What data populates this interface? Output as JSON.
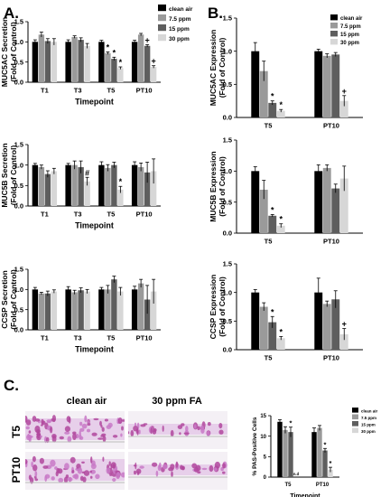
{
  "panels": {
    "A": "A.",
    "B": "B.",
    "C": "C."
  },
  "legend_labels": [
    "clean air",
    "7.5 ppm",
    "15 ppm",
    "30 ppm"
  ],
  "colors": [
    "#000000",
    "#9a9a9a",
    "#5e5e5e",
    "#d7d7d7"
  ],
  "histology": {
    "col1": "clean air",
    "col2": "30 ppm FA",
    "row1": "T5",
    "row2": "PT10",
    "stain_colors": [
      "#b0489d",
      "#e7cfea",
      "#c879c7"
    ]
  },
  "chart_data": [
    {
      "id": "A1",
      "type": "bar",
      "categories": [
        "T1",
        "T3",
        "T5",
        "PT10"
      ],
      "xlabel": "Timepoint",
      "ylabel": [
        "MUC5AC Secretion",
        "(Fold of Control)"
      ],
      "ylim": [
        0,
        1.5
      ],
      "yticks": [
        "0.0",
        "0.5",
        "1.0",
        "1.5"
      ],
      "legend": "right",
      "series": [
        {
          "name": "clean air",
          "values": [
            1.0,
            1.0,
            1.0,
            1.0
          ],
          "err": [
            0.05,
            0.05,
            0.04,
            0.04
          ]
        },
        {
          "name": "7.5 ppm",
          "values": [
            1.18,
            1.12,
            0.72,
            1.18
          ],
          "err": [
            0.06,
            0.03,
            0.03,
            0.03
          ]
        },
        {
          "name": "15 ppm",
          "values": [
            1.02,
            1.05,
            0.58,
            0.9
          ],
          "err": [
            0.06,
            0.05,
            0.04,
            0.03
          ]
        },
        {
          "name": "30 ppm",
          "values": [
            1.0,
            0.9,
            0.35,
            0.38
          ],
          "err": [
            0.08,
            0.06,
            0.03,
            0.03
          ]
        }
      ],
      "annotations": [
        {
          "category": 2,
          "series": 1,
          "text": "*"
        },
        {
          "category": 2,
          "series": 2,
          "text": "*"
        },
        {
          "category": 2,
          "series": 3,
          "text": "*"
        },
        {
          "category": 3,
          "series": 2,
          "text": "+"
        },
        {
          "category": 3,
          "series": 3,
          "text": "+"
        }
      ]
    },
    {
      "id": "A2",
      "type": "bar",
      "categories": [
        "T1",
        "T3",
        "T5",
        "PT10"
      ],
      "xlabel": "Timepoint",
      "ylabel": [
        "MUC5B Secretion",
        "(Fold of Control)"
      ],
      "ylim": [
        0,
        1.5
      ],
      "yticks": [
        "0.0",
        "0.5",
        "1.0",
        "1.5"
      ],
      "series": [
        {
          "name": "clean air",
          "values": [
            1.0,
            1.0,
            1.0,
            1.0
          ],
          "err": [
            0.04,
            0.04,
            0.08,
            0.08
          ]
        },
        {
          "name": "7.5 ppm",
          "values": [
            0.95,
            1.0,
            0.93,
            0.95
          ],
          "err": [
            0.05,
            0.1,
            0.08,
            0.1
          ]
        },
        {
          "name": "15 ppm",
          "values": [
            0.78,
            0.95,
            1.0,
            0.82
          ],
          "err": [
            0.08,
            0.15,
            0.07,
            0.25
          ]
        },
        {
          "name": "30 ppm",
          "values": [
            0.85,
            0.6,
            0.4,
            0.85
          ],
          "err": [
            0.07,
            0.1,
            0.08,
            0.3
          ]
        }
      ],
      "annotations": [
        {
          "category": 1,
          "series": 3,
          "text": "#"
        },
        {
          "category": 2,
          "series": 3,
          "text": "*"
        }
      ]
    },
    {
      "id": "A3",
      "type": "bar",
      "categories": [
        "T1",
        "T3",
        "T5",
        "PT10"
      ],
      "xlabel": "Timepoint",
      "ylabel": [
        "CCSP Secretion",
        "(Fold of Control)"
      ],
      "ylim": [
        0,
        1.5
      ],
      "yticks": [
        "0.0",
        "0.5",
        "1.0",
        "1.5"
      ],
      "series": [
        {
          "name": "clean air",
          "values": [
            1.0,
            1.0,
            1.0,
            1.0
          ],
          "err": [
            0.05,
            0.07,
            0.05,
            0.08
          ]
        },
        {
          "name": "7.5 ppm",
          "values": [
            0.9,
            0.93,
            1.0,
            1.15
          ],
          "err": [
            0.03,
            0.05,
            0.1,
            0.1
          ]
        },
        {
          "name": "15 ppm",
          "values": [
            0.9,
            0.98,
            1.25,
            0.75
          ],
          "err": [
            0.06,
            0.06,
            0.08,
            0.35
          ]
        },
        {
          "name": "30 ppm",
          "values": [
            0.95,
            0.95,
            0.95,
            0.95
          ],
          "err": [
            0.04,
            0.05,
            0.1,
            0.3
          ]
        }
      ],
      "annotations": []
    },
    {
      "id": "B1",
      "type": "bar",
      "categories": [
        "T5",
        "PT10"
      ],
      "xlabel": "",
      "ylabel": [
        "MUC5AC Expression",
        "(Fold of Control)"
      ],
      "ylim": [
        0,
        1.5
      ],
      "yticks": [
        "0.0",
        "0.5",
        "1.0",
        "1.5"
      ],
      "legend": "top-right",
      "series": [
        {
          "name": "clean air",
          "values": [
            1.0,
            1.0
          ],
          "err": [
            0.13,
            0.03
          ]
        },
        {
          "name": "7.5 ppm",
          "values": [
            0.7,
            0.93
          ],
          "err": [
            0.15,
            0.03
          ]
        },
        {
          "name": "15 ppm",
          "values": [
            0.22,
            0.95
          ],
          "err": [
            0.03,
            0.03
          ]
        },
        {
          "name": "30 ppm",
          "values": [
            0.1,
            0.25
          ],
          "err": [
            0.02,
            0.08
          ]
        }
      ],
      "annotations": [
        {
          "category": 0,
          "series": 2,
          "text": "*"
        },
        {
          "category": 0,
          "series": 3,
          "text": "*"
        },
        {
          "category": 1,
          "series": 3,
          "text": "+"
        }
      ]
    },
    {
      "id": "B2",
      "type": "bar",
      "categories": [
        "T5",
        "PT10"
      ],
      "xlabel": "",
      "ylabel": [
        "MUC5B Expression",
        "(Fold of Control)"
      ],
      "ylim": [
        0,
        1.5
      ],
      "yticks": [
        "0.0",
        "0.5",
        "1.0",
        "1.5"
      ],
      "series": [
        {
          "name": "clean air",
          "values": [
            1.0,
            1.0
          ],
          "err": [
            0.07,
            0.1
          ]
        },
        {
          "name": "7.5 ppm",
          "values": [
            0.7,
            1.05
          ],
          "err": [
            0.15,
            0.05
          ]
        },
        {
          "name": "15 ppm",
          "values": [
            0.28,
            0.72
          ],
          "err": [
            0.02,
            0.07
          ]
        },
        {
          "name": "30 ppm",
          "values": [
            0.12,
            0.88
          ],
          "err": [
            0.03,
            0.2
          ]
        }
      ],
      "annotations": [
        {
          "category": 0,
          "series": 2,
          "text": "*"
        },
        {
          "category": 0,
          "series": 3,
          "text": "*"
        }
      ]
    },
    {
      "id": "B3",
      "type": "bar",
      "categories": [
        "T5",
        "PT10"
      ],
      "xlabel": "",
      "ylabel": [
        "CCSP Expression",
        "(Fold of Control)"
      ],
      "ylim": [
        0,
        1.5
      ],
      "yticks": [
        "0.0",
        "0.5",
        "1.0",
        "1.5"
      ],
      "series": [
        {
          "name": "clean air",
          "values": [
            1.0,
            1.0
          ],
          "err": [
            0.05,
            0.25
          ]
        },
        {
          "name": "7.5 ppm",
          "values": [
            0.75,
            0.8
          ],
          "err": [
            0.07,
            0.05
          ]
        },
        {
          "name": "15 ppm",
          "values": [
            0.48,
            0.88
          ],
          "err": [
            0.1,
            0.15
          ]
        },
        {
          "name": "30 ppm",
          "values": [
            0.2,
            0.27
          ],
          "err": [
            0.03,
            0.1
          ]
        }
      ],
      "annotations": [
        {
          "category": 0,
          "series": 2,
          "text": "*"
        },
        {
          "category": 0,
          "series": 3,
          "text": "*"
        },
        {
          "category": 1,
          "series": 3,
          "text": "+"
        }
      ]
    },
    {
      "id": "C1",
      "type": "bar",
      "categories": [
        "T5",
        "PT10"
      ],
      "xlabel": "Timepoint",
      "ylabel": [
        "% PAS-Positive Cells"
      ],
      "ylim": [
        0,
        15
      ],
      "yticks": [
        "0",
        "5",
        "10",
        "15"
      ],
      "legend": "top-right",
      "series": [
        {
          "name": "clean air",
          "values": [
            13.5,
            11.0
          ],
          "err": [
            0.5,
            1.0
          ]
        },
        {
          "name": "7.5 ppm",
          "values": [
            11.5,
            12.0
          ],
          "err": [
            0.8,
            0.6
          ]
        },
        {
          "name": "15 ppm",
          "values": [
            11.0,
            6.5
          ],
          "err": [
            1.2,
            0.5
          ]
        },
        {
          "name": "30 ppm",
          "values": [
            0,
            1.8
          ],
          "err": [
            0,
            0.6
          ]
        }
      ],
      "annotations": [
        {
          "category": 0,
          "series": 2,
          "text": "*"
        },
        {
          "category": 1,
          "series": 2,
          "text": "*"
        },
        {
          "category": 1,
          "series": 3,
          "text": "*"
        },
        {
          "category": 0,
          "series": 3,
          "text": "n.d"
        }
      ]
    }
  ]
}
